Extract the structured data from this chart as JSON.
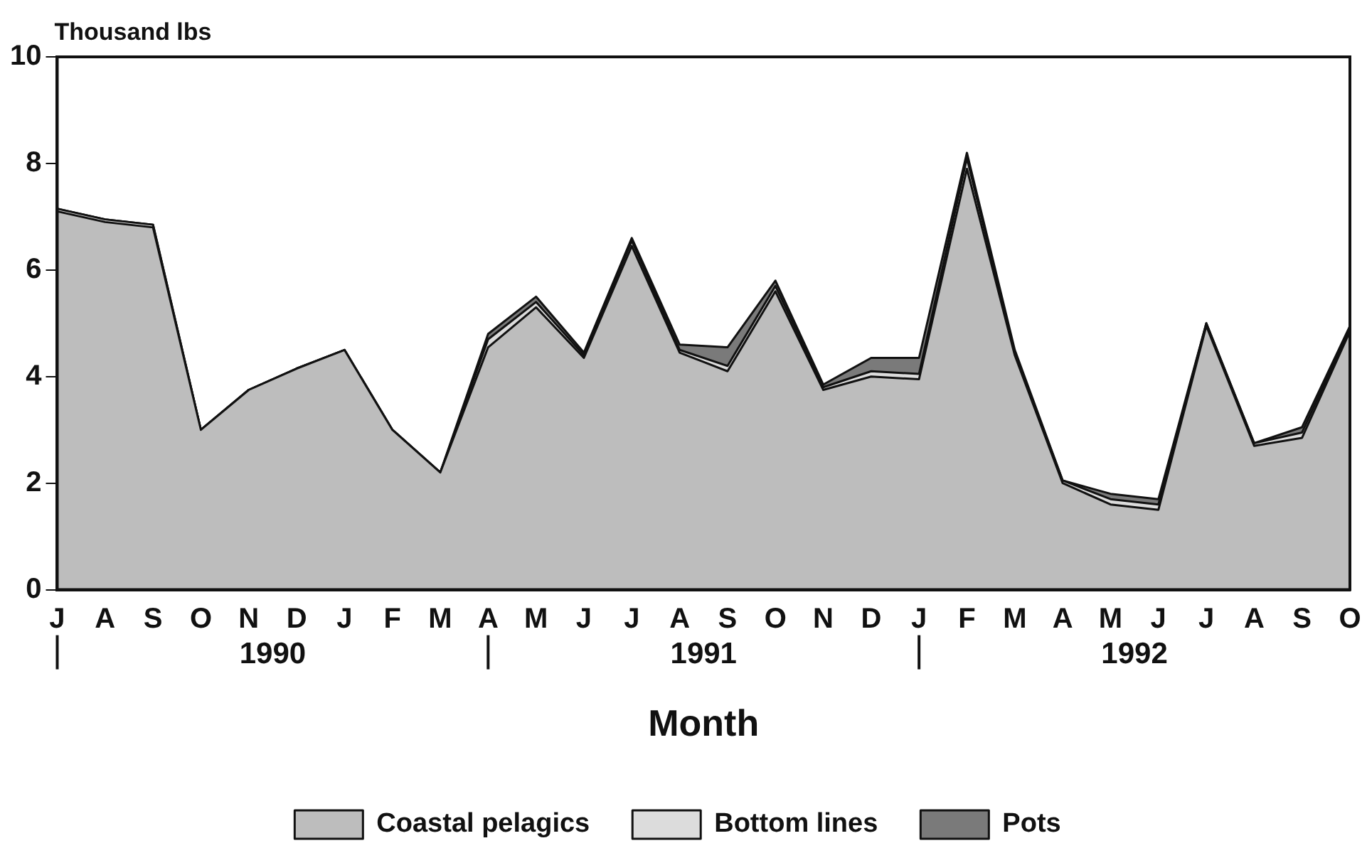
{
  "chart_data": {
    "type": "area",
    "stacked": true,
    "ylabel": "Thousand lbs",
    "xlabel": "Month",
    "categories": [
      "J",
      "A",
      "S",
      "O",
      "N",
      "D",
      "J",
      "F",
      "M",
      "A",
      "M",
      "J",
      "J",
      "A",
      "S",
      "O",
      "N",
      "D",
      "J",
      "F",
      "M",
      "A",
      "M",
      "J",
      "J",
      "A",
      "S",
      "O"
    ],
    "series": [
      {
        "name": "Coastal pelagics",
        "color": "#bdbdbd",
        "values": [
          7.1,
          6.9,
          6.8,
          3.0,
          3.75,
          4.15,
          4.5,
          3.0,
          2.2,
          4.55,
          5.3,
          4.35,
          6.45,
          4.45,
          4.1,
          5.6,
          3.75,
          4.0,
          3.95,
          7.9,
          4.4,
          2.0,
          1.6,
          1.5,
          4.95,
          2.7,
          2.85,
          4.85
        ]
      },
      {
        "name": "Bottom lines",
        "color": "#dcdcdc",
        "values": [
          0.05,
          0.05,
          0.05,
          0,
          0,
          0,
          0,
          0,
          0,
          0.15,
          0.1,
          0.05,
          0.1,
          0.05,
          0.1,
          0.1,
          0.05,
          0.1,
          0.1,
          0.2,
          0.05,
          0.05,
          0.1,
          0.1,
          0.05,
          0.05,
          0.1,
          0.05
        ]
      },
      {
        "name": "Pots",
        "color": "#7a7a7a",
        "values": [
          0,
          0,
          0,
          0,
          0,
          0,
          0,
          0,
          0,
          0.1,
          0.1,
          0.05,
          0.05,
          0.1,
          0.35,
          0.1,
          0.05,
          0.25,
          0.3,
          0.1,
          0.05,
          0,
          0.1,
          0.1,
          0,
          0,
          0.1,
          0.05
        ]
      }
    ],
    "ylim": [
      0,
      10
    ],
    "yticks": [
      0,
      2,
      4,
      6,
      8,
      10
    ],
    "annotations": [
      "1990",
      "1991",
      "1992"
    ],
    "grid": false,
    "legend": "bottom"
  }
}
